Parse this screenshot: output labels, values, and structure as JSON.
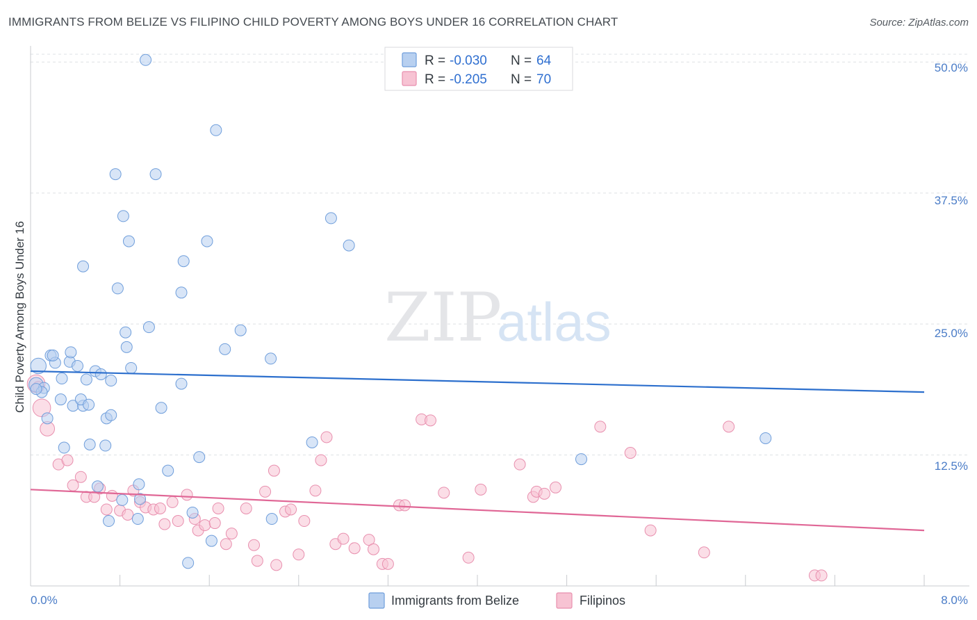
{
  "title": "IMMIGRANTS FROM BELIZE VS FILIPINO CHILD POVERTY AMONG BOYS UNDER 16 CORRELATION CHART",
  "source": "Source: ZipAtlas.com",
  "watermark": {
    "part1": "ZIP",
    "part2": "atlas"
  },
  "legend": {
    "rows": [
      {
        "r_label": "R =",
        "r_value": "-0.030",
        "n_label": "N =",
        "n_value": "64"
      },
      {
        "r_label": "R =",
        "r_value": "-0.205",
        "n_label": "N =",
        "n_value": "70"
      }
    ]
  },
  "colors": {
    "belize_fill": "#b8d0f0",
    "belize_stroke": "#6f9edb",
    "belize_line": "#2c6fcd",
    "filipino_fill": "#f7c3d3",
    "filipino_stroke": "#e88fae",
    "filipino_line": "#e06796",
    "tick_label": "#4a7cc7",
    "grid": "#dde0e4"
  },
  "chart_data": {
    "type": "scatter",
    "title": "IMMIGRANTS FROM BELIZE VS FILIPINO CHILD POVERTY AMONG BOYS UNDER 16 CORRELATION CHART",
    "xlabel": "",
    "ylabel": "Child Poverty Among Boys Under 16",
    "xlim": [
      0,
      8
    ],
    "ylim": [
      0,
      50
    ],
    "x_tick_labels": [
      "0.0%",
      "8.0%"
    ],
    "y_ticks": [
      12.5,
      25.0,
      37.5,
      50.0
    ],
    "y_tick_labels": [
      "12.5%",
      "25.0%",
      "37.5%",
      "50.0%"
    ],
    "series": [
      {
        "name": "Immigrants from Belize",
        "trend": {
          "x": [
            0,
            8
          ],
          "y": [
            20.5,
            18.5
          ]
        },
        "points": [
          {
            "x": 0.07,
            "y": 21.0,
            "s": 1.4
          },
          {
            "x": 0.05,
            "y": 19.2,
            "s": 1.3
          },
          {
            "x": 0.12,
            "y": 18.9
          },
          {
            "x": 0.1,
            "y": 18.5
          },
          {
            "x": 0.15,
            "y": 16.0
          },
          {
            "x": 0.18,
            "y": 22.0
          },
          {
            "x": 0.22,
            "y": 21.3
          },
          {
            "x": 0.2,
            "y": 22.0
          },
          {
            "x": 0.28,
            "y": 19.8
          },
          {
            "x": 0.35,
            "y": 21.4
          },
          {
            "x": 0.36,
            "y": 22.3
          },
          {
            "x": 0.42,
            "y": 21.0
          },
          {
            "x": 0.27,
            "y": 17.8
          },
          {
            "x": 0.38,
            "y": 17.2
          },
          {
            "x": 0.47,
            "y": 17.2
          },
          {
            "x": 0.45,
            "y": 17.8
          },
          {
            "x": 0.52,
            "y": 17.3
          },
          {
            "x": 0.5,
            "y": 19.7
          },
          {
            "x": 0.58,
            "y": 20.5
          },
          {
            "x": 0.63,
            "y": 20.2
          },
          {
            "x": 0.72,
            "y": 19.6
          },
          {
            "x": 0.68,
            "y": 16.0
          },
          {
            "x": 0.72,
            "y": 16.3
          },
          {
            "x": 0.3,
            "y": 13.2
          },
          {
            "x": 0.53,
            "y": 13.5
          },
          {
            "x": 0.67,
            "y": 13.4
          },
          {
            "x": 0.6,
            "y": 9.5
          },
          {
            "x": 0.7,
            "y": 6.2
          },
          {
            "x": 0.82,
            "y": 8.2
          },
          {
            "x": 0.97,
            "y": 9.7
          },
          {
            "x": 0.98,
            "y": 8.3
          },
          {
            "x": 0.96,
            "y": 6.4
          },
          {
            "x": 0.47,
            "y": 30.5
          },
          {
            "x": 0.78,
            "y": 28.4
          },
          {
            "x": 0.85,
            "y": 24.2
          },
          {
            "x": 0.86,
            "y": 22.8
          },
          {
            "x": 0.9,
            "y": 20.8
          },
          {
            "x": 0.76,
            "y": 39.3
          },
          {
            "x": 0.83,
            "y": 35.3
          },
          {
            "x": 0.88,
            "y": 32.9
          },
          {
            "x": 1.03,
            "y": 50.2
          },
          {
            "x": 1.12,
            "y": 39.3
          },
          {
            "x": 1.06,
            "y": 24.7
          },
          {
            "x": 1.17,
            "y": 17.0
          },
          {
            "x": 1.23,
            "y": 11.0
          },
          {
            "x": 1.35,
            "y": 19.3
          },
          {
            "x": 1.35,
            "y": 28.0
          },
          {
            "x": 1.37,
            "y": 31.0
          },
          {
            "x": 1.45,
            "y": 7.0
          },
          {
            "x": 1.41,
            "y": 2.2
          },
          {
            "x": 1.51,
            "y": 12.3
          },
          {
            "x": 1.58,
            "y": 32.9
          },
          {
            "x": 1.62,
            "y": 4.3
          },
          {
            "x": 1.66,
            "y": 43.5
          },
          {
            "x": 1.74,
            "y": 22.6
          },
          {
            "x": 1.88,
            "y": 24.4
          },
          {
            "x": 2.15,
            "y": 21.7
          },
          {
            "x": 2.16,
            "y": 6.4
          },
          {
            "x": 2.52,
            "y": 13.7
          },
          {
            "x": 2.69,
            "y": 35.1
          },
          {
            "x": 2.85,
            "y": 32.5
          },
          {
            "x": 4.93,
            "y": 12.1
          },
          {
            "x": 6.58,
            "y": 14.1
          },
          {
            "x": 0.05,
            "y": 18.8
          }
        ]
      },
      {
        "name": "Filipinos",
        "trend": {
          "x": [
            0,
            8
          ],
          "y": [
            9.2,
            5.3
          ]
        },
        "points": [
          {
            "x": 0.05,
            "y": 19.3,
            "s": 1.6
          },
          {
            "x": 0.1,
            "y": 17.0,
            "s": 1.6
          },
          {
            "x": 0.15,
            "y": 15.0,
            "s": 1.3
          },
          {
            "x": 0.25,
            "y": 11.6
          },
          {
            "x": 0.33,
            "y": 12.0
          },
          {
            "x": 0.38,
            "y": 9.6
          },
          {
            "x": 0.45,
            "y": 10.4
          },
          {
            "x": 0.5,
            "y": 8.5
          },
          {
            "x": 0.57,
            "y": 8.5
          },
          {
            "x": 0.62,
            "y": 9.3
          },
          {
            "x": 0.68,
            "y": 7.3
          },
          {
            "x": 0.73,
            "y": 8.6
          },
          {
            "x": 0.8,
            "y": 7.2
          },
          {
            "x": 0.87,
            "y": 6.8
          },
          {
            "x": 0.92,
            "y": 9.1
          },
          {
            "x": 0.98,
            "y": 8.0
          },
          {
            "x": 1.03,
            "y": 7.5
          },
          {
            "x": 1.1,
            "y": 7.3
          },
          {
            "x": 1.16,
            "y": 7.4
          },
          {
            "x": 1.2,
            "y": 5.9
          },
          {
            "x": 1.27,
            "y": 8.0
          },
          {
            "x": 1.32,
            "y": 6.2
          },
          {
            "x": 1.4,
            "y": 8.7
          },
          {
            "x": 1.47,
            "y": 6.4
          },
          {
            "x": 1.5,
            "y": 5.3
          },
          {
            "x": 1.56,
            "y": 5.8
          },
          {
            "x": 1.65,
            "y": 6.0
          },
          {
            "x": 1.68,
            "y": 7.4
          },
          {
            "x": 1.75,
            "y": 4.0
          },
          {
            "x": 1.8,
            "y": 5.0
          },
          {
            "x": 1.93,
            "y": 7.4
          },
          {
            "x": 2.0,
            "y": 3.9
          },
          {
            "x": 2.03,
            "y": 2.4
          },
          {
            "x": 2.1,
            "y": 9.0
          },
          {
            "x": 2.18,
            "y": 11.0
          },
          {
            "x": 2.2,
            "y": 2.0
          },
          {
            "x": 2.28,
            "y": 7.1
          },
          {
            "x": 2.33,
            "y": 7.3
          },
          {
            "x": 2.4,
            "y": 3.0
          },
          {
            "x": 2.45,
            "y": 6.2
          },
          {
            "x": 2.55,
            "y": 9.1
          },
          {
            "x": 2.6,
            "y": 12.0
          },
          {
            "x": 2.65,
            "y": 14.2
          },
          {
            "x": 2.73,
            "y": 4.0
          },
          {
            "x": 2.8,
            "y": 4.5
          },
          {
            "x": 2.9,
            "y": 3.6
          },
          {
            "x": 3.03,
            "y": 4.4
          },
          {
            "x": 3.07,
            "y": 3.5
          },
          {
            "x": 3.15,
            "y": 2.1
          },
          {
            "x": 3.2,
            "y": 2.1
          },
          {
            "x": 3.3,
            "y": 7.7
          },
          {
            "x": 3.35,
            "y": 7.7
          },
          {
            "x": 3.5,
            "y": 15.9
          },
          {
            "x": 3.58,
            "y": 15.8
          },
          {
            "x": 3.7,
            "y": 8.9
          },
          {
            "x": 3.92,
            "y": 2.7
          },
          {
            "x": 4.03,
            "y": 9.2
          },
          {
            "x": 4.38,
            "y": 11.6
          },
          {
            "x": 4.5,
            "y": 8.5
          },
          {
            "x": 4.53,
            "y": 9.0
          },
          {
            "x": 4.6,
            "y": 8.8
          },
          {
            "x": 4.7,
            "y": 9.4
          },
          {
            "x": 5.1,
            "y": 15.2
          },
          {
            "x": 5.37,
            "y": 12.7
          },
          {
            "x": 5.55,
            "y": 5.3
          },
          {
            "x": 6.03,
            "y": 3.2
          },
          {
            "x": 6.25,
            "y": 15.2
          },
          {
            "x": 7.02,
            "y": 1.0
          },
          {
            "x": 7.08,
            "y": 1.0
          },
          {
            "x": 0.07,
            "y": 19.0
          }
        ]
      }
    ],
    "legend_entries": [
      "Immigrants from Belize",
      "Filipinos"
    ]
  }
}
